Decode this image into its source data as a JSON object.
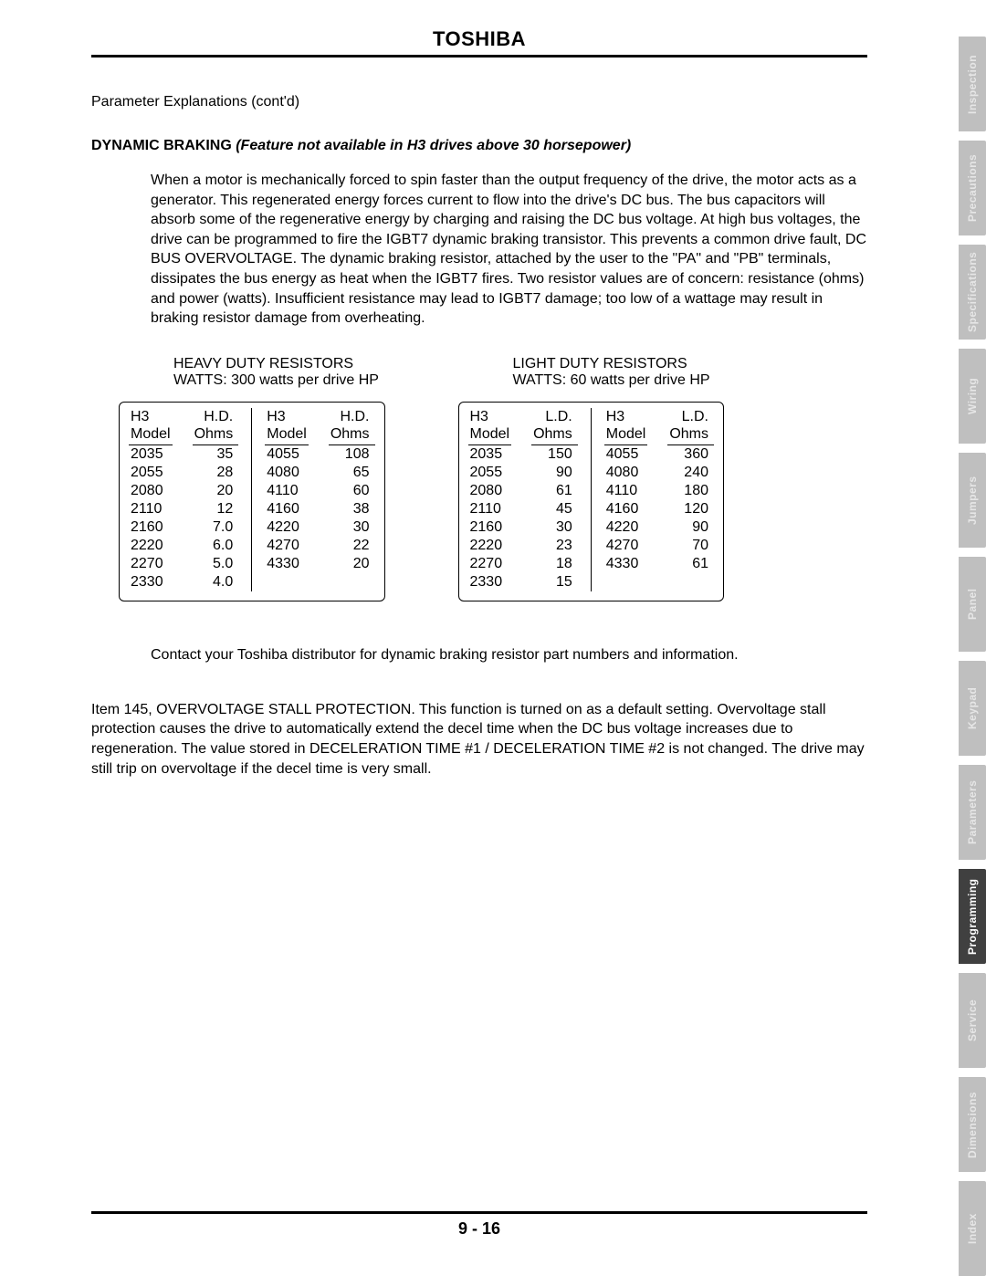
{
  "header": {
    "title": "TOSHIBA"
  },
  "sub": "Parameter Explanations (cont'd)",
  "heading": {
    "bold": "DYNAMIC BRAKING ",
    "italic": "(Feature not available in H3 drives above 30 horsepower)"
  },
  "para1": "When a motor is mechanically forced to spin faster than the output frequency of the drive, the motor acts as a generator. This regenerated energy forces current to flow into the drive's DC bus. The bus capacitors will absorb some of the regenerative energy by charging and raising the DC bus voltage. At high bus voltages, the drive can be programmed to fire the IGBT7 dynamic braking transistor. This prevents a common drive fault, DC BUS OVERVOLTAGE. The dynamic braking resistor, attached by the user to the \"PA\" and \"PB\" terminals, dissipates the bus energy as heat when the IGBT7 fires. Two resistor values are of concern: resistance (ohms) and power (watts). Insufficient resistance may lead to IGBT7 damage; too low of a wattage may result in braking resistor damage from overheating.",
  "heavy": {
    "title": "HEAVY DUTY RESISTORS",
    "sub": "WATTS: 300 watts per drive HP",
    "head_model": "H3\nModel",
    "head_ohms": "H.D.\nOhms",
    "left": {
      "model": [
        "2035",
        "2055",
        "2080",
        "2110",
        "2160",
        "2220",
        "2270",
        "2330"
      ],
      "ohms": [
        "35",
        "28",
        "20",
        "12",
        "7.0",
        "6.0",
        "5.0",
        "4.0"
      ]
    },
    "right": {
      "model": [
        "4055",
        "4080",
        "4110",
        "4160",
        "4220",
        "4270",
        "4330"
      ],
      "ohms": [
        "108",
        "65",
        "60",
        "38",
        "30",
        "22",
        "20"
      ]
    }
  },
  "light": {
    "title": "LIGHT DUTY RESISTORS",
    "sub": "WATTS: 60 watts per drive HP",
    "head_model": "H3\nModel",
    "head_ohms": "L.D.\nOhms",
    "left": {
      "model": [
        "2035",
        "2055",
        "2080",
        "2110",
        "2160",
        "2220",
        "2270",
        "2330"
      ],
      "ohms": [
        "150",
        "90",
        "61",
        "45",
        "30",
        "23",
        "18",
        "15"
      ]
    },
    "right": {
      "model": [
        "4055",
        "4080",
        "4110",
        "4160",
        "4220",
        "4270",
        "4330"
      ],
      "ohms": [
        "360",
        "240",
        "180",
        "120",
        "90",
        "70",
        "61"
      ]
    }
  },
  "note": "Contact your Toshiba distributor for dynamic braking resistor part numbers and information.",
  "item145": "Item 145, OVERVOLTAGE STALL PROTECTION. This function is turned on as a default setting. Overvoltage stall protection causes the drive to automatically extend the decel time when the DC bus voltage increases due to regeneration. The value stored in DECELERATION TIME #1 / DECELERATION TIME #2 is not changed. The drive may still trip on overvoltage if the decel time is very small.",
  "pagenum": "9 - 16",
  "tabs": [
    {
      "label": "Inspection",
      "active": false
    },
    {
      "label": "Precautions",
      "active": false
    },
    {
      "label": "Specifications",
      "active": false
    },
    {
      "label": "Wiring",
      "active": false
    },
    {
      "label": "Jumpers",
      "active": false
    },
    {
      "label": "Panel",
      "active": false
    },
    {
      "label": "Keypad",
      "active": false
    },
    {
      "label": "Parameters",
      "active": false
    },
    {
      "label": "Programming",
      "active": true
    },
    {
      "label": "Service",
      "active": false
    },
    {
      "label": "Dimensions",
      "active": false
    },
    {
      "label": "Index",
      "active": false
    }
  ]
}
